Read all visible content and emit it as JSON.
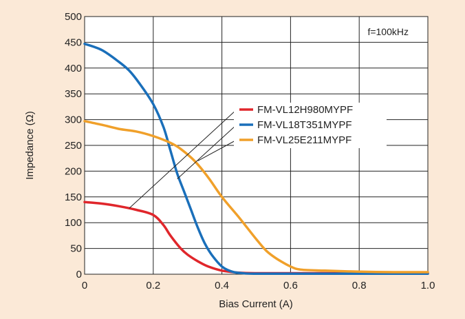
{
  "chart_data": {
    "type": "line",
    "title": "",
    "xlabel": "Bias Current (A)",
    "ylabel": "Impedance (Ω)",
    "xlim": [
      0,
      1.0
    ],
    "ylim": [
      0,
      500
    ],
    "x_ticks": [
      "0",
      "0.2",
      "0.4",
      "0.6",
      "0.8",
      "1.0"
    ],
    "y_ticks": [
      "0",
      "50",
      "100",
      "150",
      "200",
      "250",
      "300",
      "350",
      "400",
      "450",
      "500"
    ],
    "grid": true,
    "annotation": "f=100kHz",
    "legend_position": "middle-right",
    "series": [
      {
        "name": "FM-VL12H980MYPF",
        "color": "#e0262b",
        "points": [
          [
            0,
            140
          ],
          [
            0.05,
            137
          ],
          [
            0.1,
            132
          ],
          [
            0.15,
            125
          ],
          [
            0.2,
            115
          ],
          [
            0.23,
            95
          ],
          [
            0.25,
            75
          ],
          [
            0.28,
            50
          ],
          [
            0.3,
            38
          ],
          [
            0.33,
            25
          ],
          [
            0.36,
            15
          ],
          [
            0.4,
            7
          ],
          [
            0.45,
            3
          ],
          [
            0.5,
            2
          ],
          [
            0.6,
            2
          ],
          [
            0.8,
            2
          ],
          [
            1.0,
            2
          ]
        ]
      },
      {
        "name": "FM-VL18T351MYPF",
        "color": "#1a6fba",
        "points": [
          [
            0,
            447
          ],
          [
            0.05,
            435
          ],
          [
            0.1,
            412
          ],
          [
            0.13,
            395
          ],
          [
            0.16,
            370
          ],
          [
            0.2,
            330
          ],
          [
            0.23,
            285
          ],
          [
            0.25,
            240
          ],
          [
            0.27,
            195
          ],
          [
            0.29,
            160
          ],
          [
            0.31,
            125
          ],
          [
            0.33,
            90
          ],
          [
            0.35,
            60
          ],
          [
            0.37,
            38
          ],
          [
            0.4,
            15
          ],
          [
            0.43,
            5
          ],
          [
            0.46,
            2
          ],
          [
            0.5,
            1
          ],
          [
            0.7,
            1
          ],
          [
            1.0,
            1
          ]
        ]
      },
      {
        "name": "FM-VL25E211MYPF",
        "color": "#f0a02a",
        "points": [
          [
            0,
            297
          ],
          [
            0.05,
            290
          ],
          [
            0.1,
            282
          ],
          [
            0.15,
            277
          ],
          [
            0.2,
            268
          ],
          [
            0.25,
            255
          ],
          [
            0.28,
            243
          ],
          [
            0.32,
            220
          ],
          [
            0.36,
            188
          ],
          [
            0.4,
            150
          ],
          [
            0.45,
            110
          ],
          [
            0.5,
            68
          ],
          [
            0.53,
            45
          ],
          [
            0.56,
            30
          ],
          [
            0.6,
            15
          ],
          [
            0.63,
            9
          ],
          [
            0.7,
            7
          ],
          [
            0.8,
            5
          ],
          [
            0.9,
            4
          ],
          [
            1.0,
            4
          ]
        ]
      }
    ]
  }
}
